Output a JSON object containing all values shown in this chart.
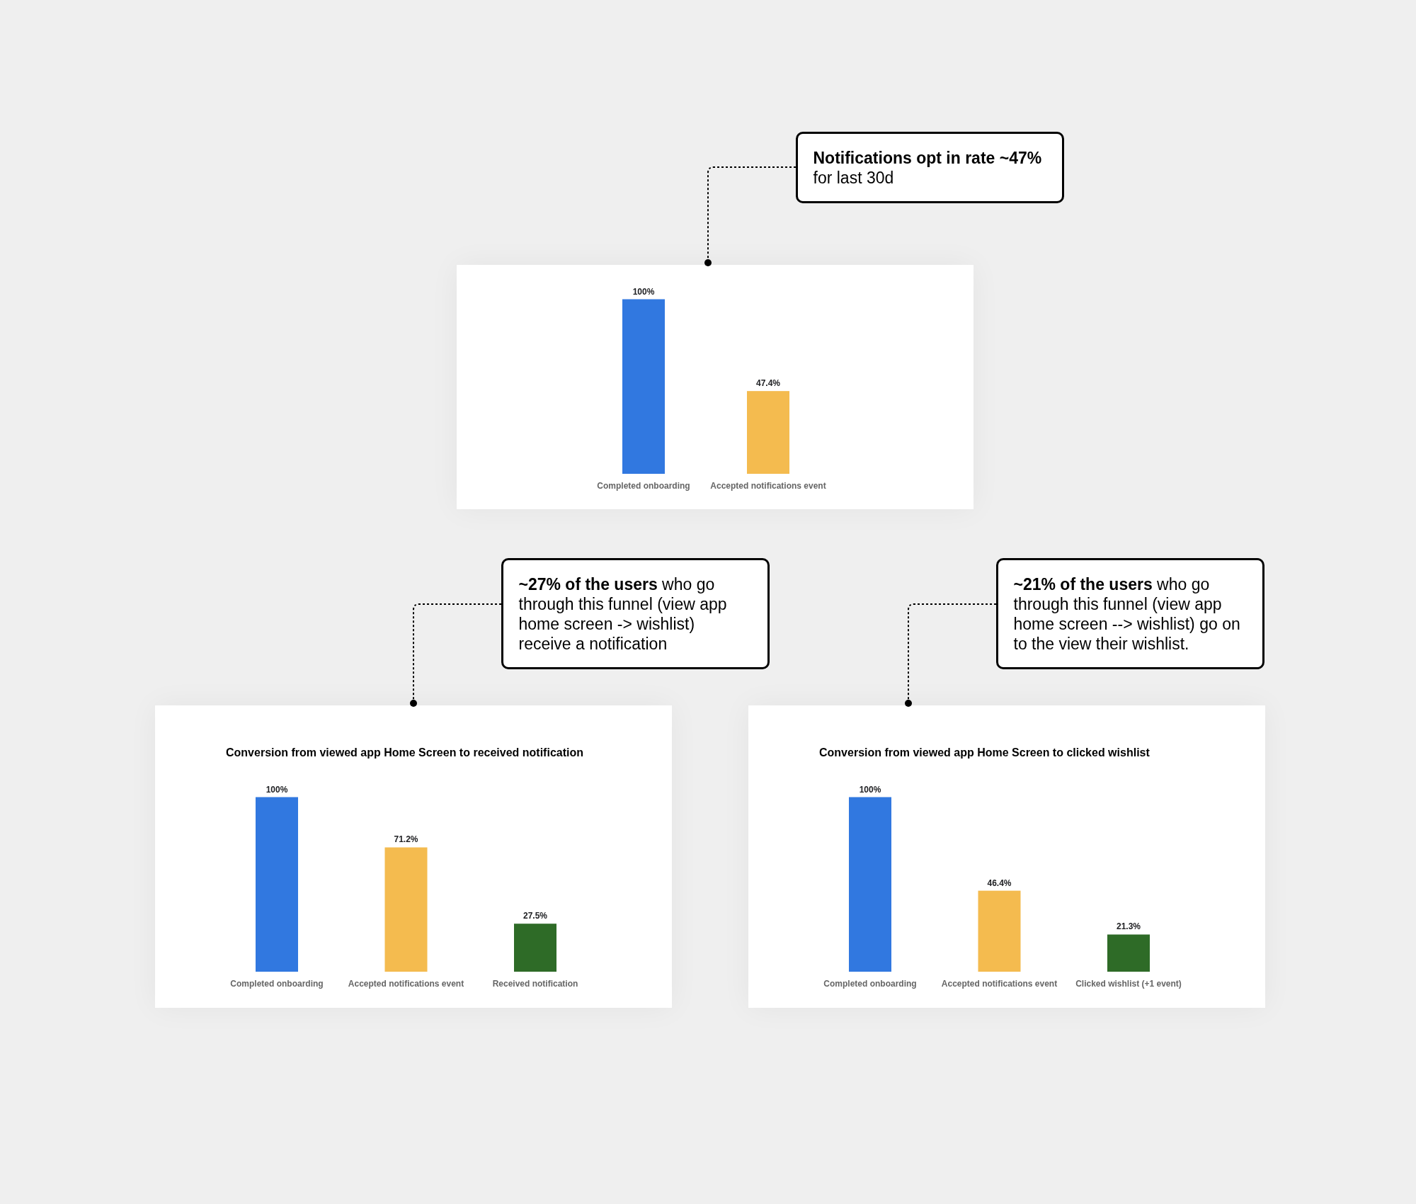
{
  "chart_data": [
    {
      "type": "bar",
      "categories": [
        "Completed onboarding",
        "Accepted notifications event"
      ],
      "values": [
        100,
        47.4
      ],
      "value_labels": [
        "100%",
        "47.4%"
      ],
      "colors": [
        "#3178e0",
        "#f4bb4f"
      ],
      "annotations": [
        "Notifications opt in rate ~47%",
        "for last 30d"
      ]
    },
    {
      "type": "bar",
      "title": "Conversion from viewed app Home Screen to received notification",
      "categories": [
        "Completed onboarding",
        "Accepted notifications event",
        "Received notification"
      ],
      "values": [
        100,
        71.2,
        27.5
      ],
      "value_labels": [
        "100%",
        "71.2%",
        "27.5%"
      ],
      "colors": [
        "#3178e0",
        "#f4bb4f",
        "#2e6b27"
      ],
      "annotations": [
        "~27% of the users",
        "who go through this funnel (view app home screen -> wishlist) receive a notification"
      ]
    },
    {
      "type": "bar",
      "title": "Conversion from viewed app Home Screen to clicked wishlist",
      "categories": [
        "Completed onboarding",
        "Accepted notifications event",
        "Clicked wishlist (+1 event)"
      ],
      "values": [
        100,
        46.4,
        21.3
      ],
      "value_labels": [
        "100%",
        "46.4%",
        "21.3%"
      ],
      "colors": [
        "#3178e0",
        "#f4bb4f",
        "#2e6b27"
      ],
      "annotations": [
        "~21% of the users",
        "who go through this funnel (view app home screen --> wishlist) go on to the view their wishlist."
      ]
    }
  ]
}
